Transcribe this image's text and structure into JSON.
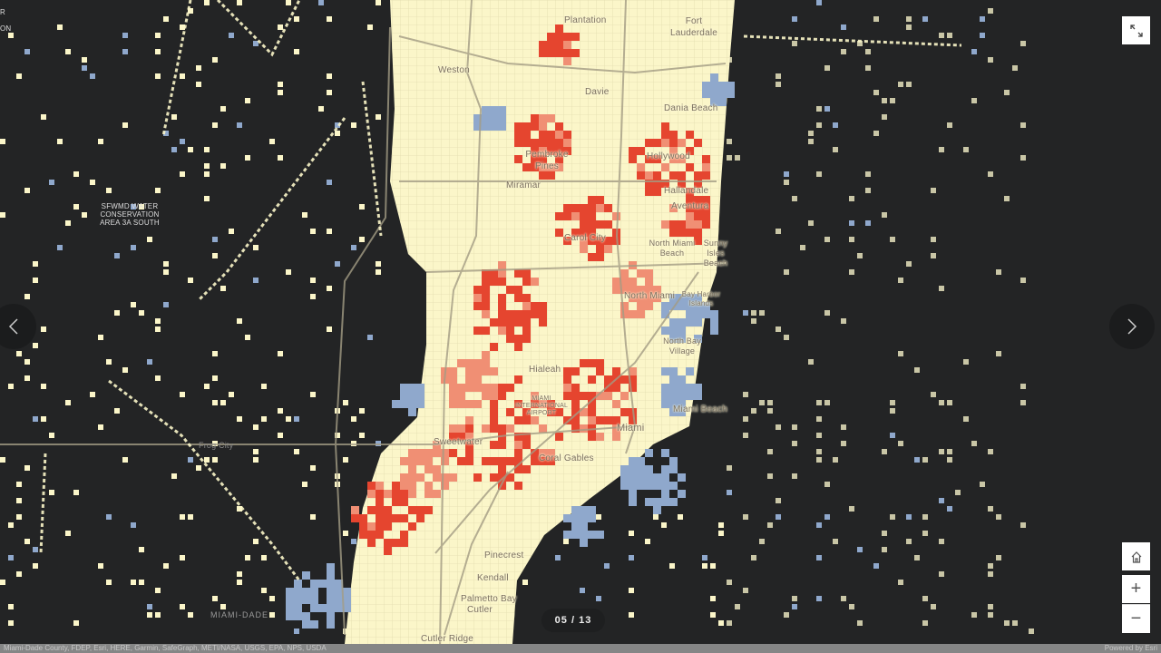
{
  "map": {
    "colors": {
      "background": "#232425",
      "land": "#fbf6c9",
      "grid": "#e2dcae",
      "high": "#e5452f",
      "mid": "#f08f74",
      "low": "#8fa8cc",
      "road": "#a39c84"
    },
    "labels": {
      "plantation": "Plantation",
      "fort_lauderdale": "Fort Lauderdale",
      "weston": "Weston",
      "davie": "Davie",
      "dania_beach": "Dania Beach",
      "pembroke_pines": "Pembroke Pines",
      "hollywood": "Hollywood",
      "miramar": "Miramar",
      "hallandale": "Hallandale",
      "aventura": "Aventura",
      "carol_city": "Carol City",
      "north_miami_beach": "North Miami Beach",
      "sunny_isles_beach": "Sunny Isles Beach",
      "north_miami": "North Miami",
      "bay_harbor_islands": "Bay Harbor Islands",
      "north_bay_village": "North Bay Village",
      "hialeah": "Hialeah",
      "airport": "MIAMI INTERNATIONAL AIRPORT",
      "miami": "Miami",
      "miami_beach": "Miami Beach",
      "sweetwater": "Sweetwater",
      "coral_gables": "Coral Gables",
      "pinecrest": "Pinecrest",
      "kendall": "Kendall",
      "palmetto_bay": "Palmetto Bay",
      "cutler": "Cutler",
      "cutler_ridge": "Cutler Ridge",
      "frog_city": "Frog City",
      "miami_dade": "MIAMI-DADE",
      "sfwmd": "SFWMD WATER CONSERVATION AREA 3A SOUTH",
      "edge_top": "R",
      "edge_second": "ON"
    },
    "attribution": "Miami-Dade County, FDEP, Esri, HERE, Garmin, SafeGraph, METI/NASA, USGS, EPA, NPS, USDA",
    "powered_by": "Powered by Esri"
  },
  "controls": {
    "expand_icon": "expand-icon",
    "home_icon": "home-icon",
    "zoom_in": "+",
    "zoom_out": "−",
    "prev_icon": "chevron-left-icon",
    "next_icon": "chevron-right-icon"
  },
  "pager": {
    "current": "05",
    "separator": "/",
    "total": "13"
  }
}
